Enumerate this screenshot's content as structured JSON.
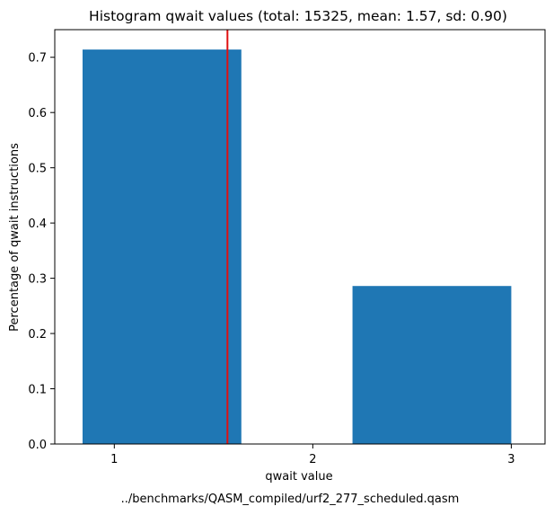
{
  "chart_data": {
    "type": "bar",
    "title": "Histogram qwait values (total: 15325, mean: 1.57, sd: 0.90)",
    "xlabel": "qwait value",
    "ylabel": "Percentage of qwait instructions",
    "footnote": "../benchmarks/QASM_compiled/urf2_277_scheduled.qasm",
    "xlim": [
      0.7,
      3.17
    ],
    "ylim": [
      0,
      0.75
    ],
    "xticks": [
      1,
      2,
      3
    ],
    "yticks": [
      0.0,
      0.1,
      0.2,
      0.3,
      0.4,
      0.5,
      0.6,
      0.7
    ],
    "bars": [
      {
        "start": 0.84,
        "end": 1.64,
        "value": 0.714
      },
      {
        "start": 1.64,
        "end": 2.2,
        "value": 0.0
      },
      {
        "start": 2.2,
        "end": 3.0,
        "value": 0.286
      }
    ],
    "mean_line": {
      "x": 1.57,
      "color": "#e01010"
    },
    "bar_color": "#1f77b4",
    "grid": false
  }
}
